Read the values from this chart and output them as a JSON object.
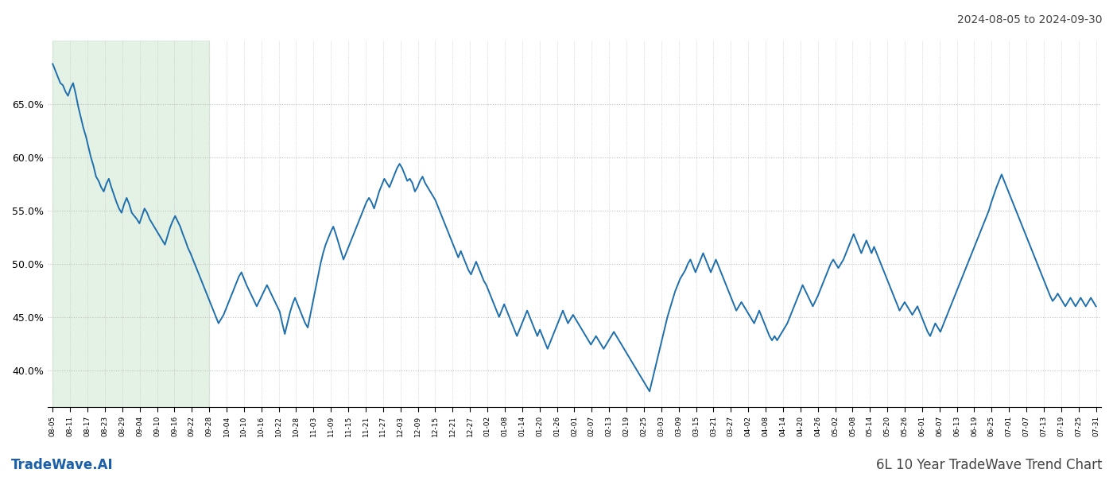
{
  "title_right": "2024-08-05 to 2024-09-30",
  "footer_left": "TradeWave.AI",
  "footer_right": "6L 10 Year TradeWave Trend Chart",
  "ylim": [
    0.365,
    0.71
  ],
  "yticks": [
    0.4,
    0.45,
    0.5,
    0.55,
    0.6,
    0.65
  ],
  "background_color": "#ffffff",
  "line_color": "#1f6fad",
  "shade_color": "#d6ead7",
  "shade_alpha": 0.65,
  "grid_color": "#c0c0c0",
  "grid_linestyle": ":",
  "line_width": 1.4,
  "x_labels": [
    "08-05",
    "08-11",
    "08-17",
    "08-23",
    "08-29",
    "09-04",
    "09-10",
    "09-16",
    "09-22",
    "09-28",
    "10-04",
    "10-10",
    "10-16",
    "10-22",
    "10-28",
    "11-03",
    "11-09",
    "11-15",
    "11-21",
    "11-27",
    "12-03",
    "12-09",
    "12-15",
    "12-21",
    "12-27",
    "01-02",
    "01-08",
    "01-14",
    "01-20",
    "01-26",
    "02-01",
    "02-07",
    "02-13",
    "02-19",
    "02-25",
    "03-03",
    "03-09",
    "03-15",
    "03-21",
    "03-27",
    "04-02",
    "04-08",
    "04-14",
    "04-20",
    "04-26",
    "05-02",
    "05-08",
    "05-14",
    "05-20",
    "05-26",
    "06-01",
    "06-07",
    "06-13",
    "06-19",
    "06-25",
    "07-01",
    "07-07",
    "07-13",
    "07-19",
    "07-25",
    "07-31"
  ],
  "shade_label_start": "08-05",
  "shade_label_end": "09-28",
  "values": [
    0.688,
    0.682,
    0.676,
    0.67,
    0.668,
    0.662,
    0.658,
    0.665,
    0.67,
    0.66,
    0.648,
    0.638,
    0.628,
    0.62,
    0.61,
    0.6,
    0.592,
    0.582,
    0.578,
    0.572,
    0.568,
    0.575,
    0.58,
    0.572,
    0.565,
    0.558,
    0.552,
    0.548,
    0.556,
    0.562,
    0.556,
    0.548,
    0.545,
    0.542,
    0.538,
    0.545,
    0.552,
    0.548,
    0.542,
    0.538,
    0.534,
    0.53,
    0.526,
    0.522,
    0.518,
    0.526,
    0.534,
    0.54,
    0.545,
    0.54,
    0.535,
    0.528,
    0.522,
    0.515,
    0.51,
    0.504,
    0.498,
    0.492,
    0.486,
    0.48,
    0.474,
    0.468,
    0.462,
    0.456,
    0.45,
    0.444,
    0.448,
    0.452,
    0.458,
    0.464,
    0.47,
    0.476,
    0.482,
    0.488,
    0.492,
    0.486,
    0.48,
    0.475,
    0.47,
    0.465,
    0.46,
    0.465,
    0.47,
    0.475,
    0.48,
    0.475,
    0.47,
    0.465,
    0.46,
    0.455,
    0.444,
    0.434,
    0.444,
    0.454,
    0.462,
    0.468,
    0.462,
    0.456,
    0.45,
    0.444,
    0.44,
    0.452,
    0.464,
    0.476,
    0.488,
    0.5,
    0.51,
    0.518,
    0.524,
    0.53,
    0.535,
    0.528,
    0.52,
    0.512,
    0.504,
    0.51,
    0.516,
    0.522,
    0.528,
    0.534,
    0.54,
    0.546,
    0.552,
    0.558,
    0.562,
    0.558,
    0.552,
    0.56,
    0.568,
    0.574,
    0.58,
    0.576,
    0.572,
    0.578,
    0.584,
    0.59,
    0.594,
    0.59,
    0.584,
    0.578,
    0.58,
    0.576,
    0.568,
    0.572,
    0.578,
    0.582,
    0.576,
    0.572,
    0.568,
    0.564,
    0.56,
    0.554,
    0.548,
    0.542,
    0.536,
    0.53,
    0.524,
    0.518,
    0.512,
    0.506,
    0.512,
    0.506,
    0.5,
    0.494,
    0.49,
    0.496,
    0.502,
    0.496,
    0.49,
    0.484,
    0.48,
    0.474,
    0.468,
    0.462,
    0.456,
    0.45,
    0.456,
    0.462,
    0.456,
    0.45,
    0.444,
    0.438,
    0.432,
    0.438,
    0.444,
    0.45,
    0.456,
    0.45,
    0.444,
    0.438,
    0.432,
    0.438,
    0.432,
    0.426,
    0.42,
    0.426,
    0.432,
    0.438,
    0.444,
    0.45,
    0.456,
    0.45,
    0.444,
    0.448,
    0.452,
    0.448,
    0.444,
    0.44,
    0.436,
    0.432,
    0.428,
    0.424,
    0.428,
    0.432,
    0.428,
    0.424,
    0.42,
    0.424,
    0.428,
    0.432,
    0.436,
    0.432,
    0.428,
    0.424,
    0.42,
    0.416,
    0.412,
    0.408,
    0.404,
    0.4,
    0.396,
    0.392,
    0.388,
    0.384,
    0.38,
    0.39,
    0.4,
    0.41,
    0.42,
    0.43,
    0.44,
    0.45,
    0.458,
    0.466,
    0.474,
    0.48,
    0.486,
    0.49,
    0.494,
    0.5,
    0.504,
    0.498,
    0.492,
    0.498,
    0.504,
    0.51,
    0.504,
    0.498,
    0.492,
    0.498,
    0.504,
    0.498,
    0.492,
    0.486,
    0.48,
    0.474,
    0.468,
    0.462,
    0.456,
    0.46,
    0.464,
    0.46,
    0.456,
    0.452,
    0.448,
    0.444,
    0.45,
    0.456,
    0.45,
    0.444,
    0.438,
    0.432,
    0.428,
    0.432,
    0.428,
    0.432,
    0.436,
    0.44,
    0.444,
    0.45,
    0.456,
    0.462,
    0.468,
    0.474,
    0.48,
    0.475,
    0.47,
    0.465,
    0.46,
    0.465,
    0.47,
    0.476,
    0.482,
    0.488,
    0.494,
    0.5,
    0.504,
    0.5,
    0.496,
    0.5,
    0.504,
    0.51,
    0.516,
    0.522,
    0.528,
    0.522,
    0.516,
    0.51,
    0.516,
    0.522,
    0.516,
    0.51,
    0.516,
    0.51,
    0.504,
    0.498,
    0.492,
    0.486,
    0.48,
    0.474,
    0.468,
    0.462,
    0.456,
    0.46,
    0.464,
    0.46,
    0.456,
    0.452,
    0.456,
    0.46,
    0.454,
    0.448,
    0.442,
    0.436,
    0.432,
    0.438,
    0.444,
    0.44,
    0.436,
    0.442,
    0.448,
    0.454,
    0.46,
    0.466,
    0.472,
    0.478,
    0.484,
    0.49,
    0.496,
    0.502,
    0.508,
    0.514,
    0.52,
    0.526,
    0.532,
    0.538,
    0.544,
    0.55,
    0.558,
    0.565,
    0.572,
    0.578,
    0.584,
    0.578,
    0.572,
    0.566,
    0.56,
    0.554,
    0.548,
    0.542,
    0.536,
    0.53,
    0.524,
    0.518,
    0.512,
    0.506,
    0.5,
    0.494,
    0.488,
    0.482,
    0.476,
    0.47,
    0.465,
    0.468,
    0.472,
    0.468,
    0.464,
    0.46,
    0.464,
    0.468,
    0.464,
    0.46,
    0.464,
    0.468,
    0.464,
    0.46,
    0.464,
    0.468,
    0.464,
    0.46
  ]
}
